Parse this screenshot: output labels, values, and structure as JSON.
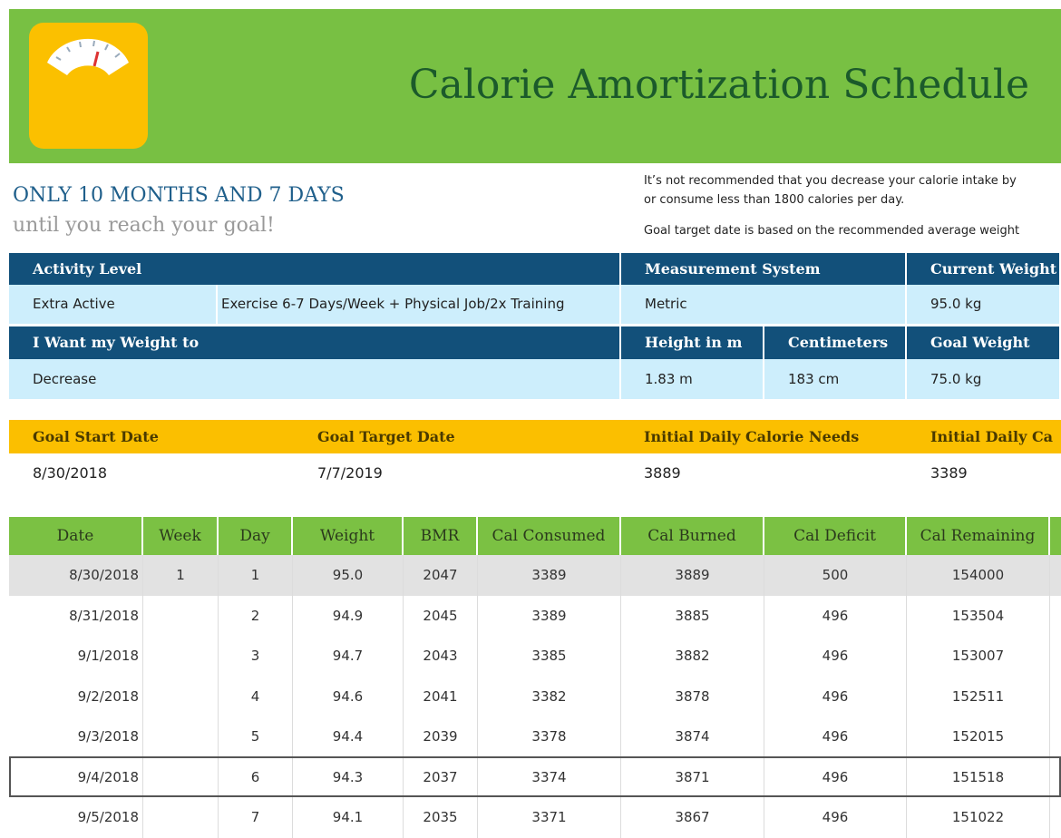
{
  "header": {
    "title": "Calorie Amortization Schedule"
  },
  "countdown": {
    "headline": "ONLY 10 MONTHS AND 7 DAYS",
    "subline": "until you reach your goal!"
  },
  "notes": [
    "It’s not recommended that you decrease your calorie intake by",
    "or consume less than 1800 calories per day.",
    "Goal target date is based on the recommended average weight"
  ],
  "profile": {
    "headers1": [
      "Activity Level",
      "Measurement System",
      "Current Weight"
    ],
    "values1": [
      "Extra Active",
      "Exercise 6-7 Days/Week + Physical Job/2x Training",
      "Metric",
      "95.0 kg"
    ],
    "headers2": [
      "I Want my Weight to",
      "Height in m",
      "Centimeters",
      "Goal Weight"
    ],
    "values2": [
      "Decrease",
      "1.83 m",
      "183 cm",
      "75.0 kg"
    ]
  },
  "goal": {
    "headers": [
      "Goal Start Date",
      "Goal Target Date",
      "Initial Daily Calorie Needs",
      "Initial Daily Ca"
    ],
    "values": [
      "8/30/2018",
      "7/7/2019",
      "3889",
      "3389"
    ]
  },
  "schedule": {
    "columns": [
      "Date",
      "Week",
      "Day",
      "Weight",
      "BMR",
      "Cal Consumed",
      "Cal Burned",
      "Cal Deficit",
      "Cal Remaining"
    ],
    "rows": [
      [
        "8/30/2018",
        "1",
        "1",
        "95.0",
        "2047",
        "3389",
        "3889",
        "500",
        "154000"
      ],
      [
        "8/31/2018",
        null,
        "2",
        "94.9",
        "2045",
        "3389",
        "3885",
        "496",
        "153504"
      ],
      [
        "9/1/2018",
        null,
        "3",
        "94.7",
        "2043",
        "3385",
        "3882",
        "496",
        "153007"
      ],
      [
        "9/2/2018",
        null,
        "4",
        "94.6",
        "2041",
        "3382",
        "3878",
        "496",
        "152511"
      ],
      [
        "9/3/2018",
        null,
        "5",
        "94.4",
        "2039",
        "3378",
        "3874",
        "496",
        "152015"
      ],
      [
        "9/4/2018",
        null,
        "6",
        "94.3",
        "2037",
        "3374",
        "3871",
        "496",
        "151518"
      ],
      [
        "9/5/2018",
        null,
        "7",
        "94.1",
        "2035",
        "3371",
        "3867",
        "496",
        "151022"
      ]
    ]
  }
}
